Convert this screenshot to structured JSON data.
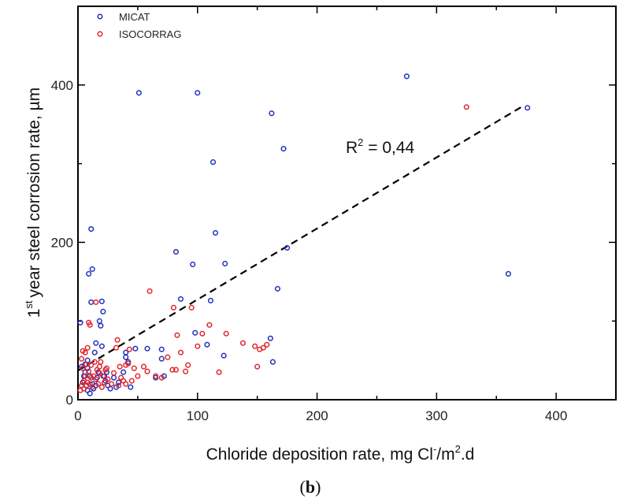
{
  "chart_data": {
    "type": "scatter",
    "xlabel": "Chloride deposition rate, mg Cl",
    "xlabel_sup1": "-",
    "xlabel_mid": "/m",
    "xlabel_sup2": "2",
    "xlabel_tail": ".d",
    "ylabel": "year steel corrosion rate, µm",
    "ylabel_prefix": "1",
    "ylabel_sup": "st",
    "xlim": [
      0,
      450
    ],
    "ylim": [
      0,
      500
    ],
    "x_ticks": [
      0,
      100,
      200,
      300,
      400
    ],
    "y_ticks": [
      0,
      200,
      400
    ],
    "grid": false,
    "legend_position": "top-left",
    "annotation": {
      "prefix": "R",
      "sup": "2",
      "text": " = 0,44"
    },
    "caption": {
      "open": "(",
      "letter": "b",
      "close": ")"
    },
    "trendline": {
      "style": "dashed",
      "color": "#000000",
      "x": [
        0,
        372
      ],
      "y": [
        37,
        373
      ]
    },
    "series": [
      {
        "name": "MICAT",
        "color": "#1f2fbf",
        "points": [
          [
            2,
            98
          ],
          [
            3,
            42
          ],
          [
            4,
            22
          ],
          [
            5,
            30
          ],
          [
            6,
            45
          ],
          [
            6,
            35
          ],
          [
            7,
            18
          ],
          [
            8,
            40
          ],
          [
            8,
            12
          ],
          [
            8,
            50
          ],
          [
            9,
            160
          ],
          [
            10,
            8
          ],
          [
            10,
            30
          ],
          [
            11,
            217
          ],
          [
            11,
            124
          ],
          [
            12,
            166
          ],
          [
            12,
            20
          ],
          [
            13,
            14
          ],
          [
            14,
            60
          ],
          [
            15,
            72
          ],
          [
            15,
            18
          ],
          [
            16,
            28
          ],
          [
            17,
            35
          ],
          [
            18,
            100
          ],
          [
            19,
            94
          ],
          [
            20,
            125
          ],
          [
            20,
            68
          ],
          [
            21,
            112
          ],
          [
            22,
            30
          ],
          [
            23,
            24
          ],
          [
            24,
            35
          ],
          [
            25,
            18
          ],
          [
            27,
            14
          ],
          [
            30,
            28
          ],
          [
            32,
            16
          ],
          [
            34,
            22
          ],
          [
            38,
            35
          ],
          [
            40,
            60
          ],
          [
            40,
            54
          ],
          [
            42,
            48
          ],
          [
            44,
            16
          ],
          [
            48,
            65
          ],
          [
            51,
            390
          ],
          [
            58,
            65
          ],
          [
            65,
            28
          ],
          [
            70,
            64
          ],
          [
            70,
            52
          ],
          [
            72,
            30
          ],
          [
            82,
            188
          ],
          [
            86,
            128
          ],
          [
            96,
            172
          ],
          [
            98,
            85
          ],
          [
            100,
            390
          ],
          [
            108,
            70
          ],
          [
            111,
            126
          ],
          [
            113,
            302
          ],
          [
            115,
            212
          ],
          [
            122,
            56
          ],
          [
            123,
            173
          ],
          [
            161,
            78
          ],
          [
            162,
            364
          ],
          [
            163,
            48
          ],
          [
            167,
            141
          ],
          [
            172,
            319
          ],
          [
            175,
            193
          ],
          [
            275,
            411
          ],
          [
            360,
            160
          ],
          [
            376,
            371
          ]
        ]
      },
      {
        "name": "ISOCORRAG",
        "color": "#e0252b",
        "points": [
          [
            2,
            12
          ],
          [
            3,
            18
          ],
          [
            3,
            52
          ],
          [
            4,
            62
          ],
          [
            4,
            40
          ],
          [
            5,
            14
          ],
          [
            5,
            24
          ],
          [
            6,
            30
          ],
          [
            6,
            60
          ],
          [
            7,
            18
          ],
          [
            7,
            45
          ],
          [
            8,
            22
          ],
          [
            8,
            66
          ],
          [
            9,
            98
          ],
          [
            9,
            36
          ],
          [
            10,
            95
          ],
          [
            10,
            20
          ],
          [
            11,
            44
          ],
          [
            11,
            28
          ],
          [
            12,
            16
          ],
          [
            13,
            30
          ],
          [
            14,
            48
          ],
          [
            15,
            26
          ],
          [
            15,
            124
          ],
          [
            16,
            38
          ],
          [
            17,
            20
          ],
          [
            18,
            34
          ],
          [
            18,
            42
          ],
          [
            19,
            48
          ],
          [
            20,
            16
          ],
          [
            21,
            30
          ],
          [
            22,
            22
          ],
          [
            23,
            38
          ],
          [
            24,
            40
          ],
          [
            25,
            26
          ],
          [
            28,
            20
          ],
          [
            30,
            34
          ],
          [
            32,
            66
          ],
          [
            33,
            76
          ],
          [
            34,
            18
          ],
          [
            35,
            42
          ],
          [
            36,
            28
          ],
          [
            38,
            24
          ],
          [
            40,
            20
          ],
          [
            40,
            44
          ],
          [
            42,
            46
          ],
          [
            43,
            64
          ],
          [
            45,
            24
          ],
          [
            47,
            40
          ],
          [
            50,
            30
          ],
          [
            55,
            42
          ],
          [
            58,
            36
          ],
          [
            60,
            138
          ],
          [
            65,
            30
          ],
          [
            70,
            28
          ],
          [
            75,
            54
          ],
          [
            79,
            38
          ],
          [
            80,
            117
          ],
          [
            82,
            38
          ],
          [
            83,
            82
          ],
          [
            86,
            60
          ],
          [
            90,
            36
          ],
          [
            92,
            44
          ],
          [
            95,
            117
          ],
          [
            100,
            68
          ],
          [
            104,
            84
          ],
          [
            110,
            95
          ],
          [
            118,
            35
          ],
          [
            124,
            84
          ],
          [
            138,
            72
          ],
          [
            148,
            68
          ],
          [
            150,
            42
          ],
          [
            152,
            64
          ],
          [
            155,
            66
          ],
          [
            158,
            70
          ],
          [
            325,
            372
          ]
        ]
      }
    ]
  }
}
